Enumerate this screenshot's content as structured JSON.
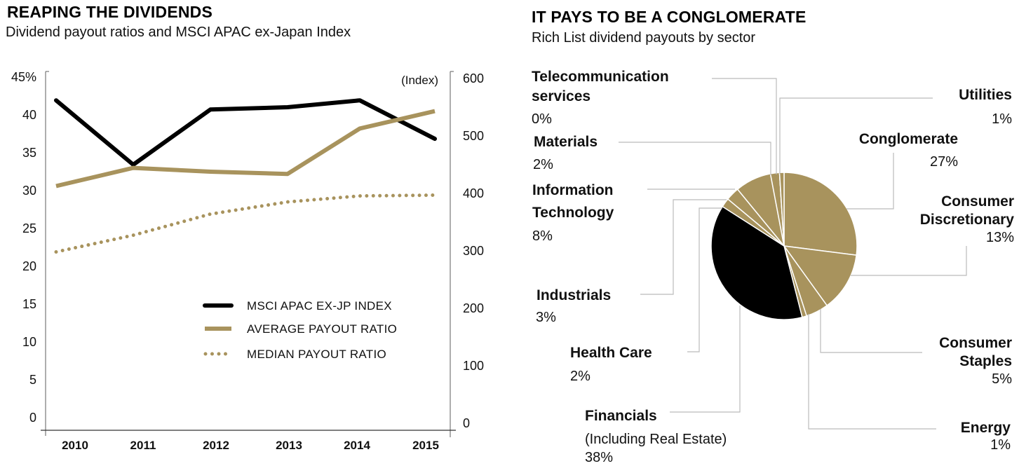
{
  "colors": {
    "gold": "#A8935D",
    "black": "#000000",
    "axis": "#777777",
    "leader": "#BBBBBB"
  },
  "left_panel": {
    "title": "REAPING THE DIVIDENDS",
    "subtitle": "Dividend payout ratios and MSCI APAC ex-Japan Index"
  },
  "right_panel": {
    "title": "IT PAYS TO BE A CONGLOMERATE",
    "subtitle": "Rich List dividend payouts by sector"
  },
  "chart_data": [
    {
      "type": "line",
      "title": "REAPING THE DIVIDENDS",
      "subtitle": "Dividend payout ratios and MSCI APAC ex-Japan Index",
      "x": [
        "2010",
        "2011",
        "2012",
        "2013",
        "2014",
        "2015"
      ],
      "y_left": {
        "label": "%",
        "ylim": [
          0,
          45
        ],
        "ticks": [
          "45%",
          "40",
          "35",
          "30",
          "25",
          "20",
          "15",
          "10",
          "5",
          "0"
        ],
        "tick_values": [
          45,
          40,
          35,
          30,
          25,
          20,
          15,
          10,
          5,
          0
        ]
      },
      "y_right": {
        "label": "(Index)",
        "ylim": [
          0,
          600
        ],
        "ticks": [
          "600",
          "500",
          "400",
          "300",
          "200",
          "100",
          "0"
        ],
        "tick_values": [
          600,
          500,
          400,
          300,
          200,
          100,
          0
        ]
      },
      "grid": false,
      "legend_placement": "bottom-right",
      "series": [
        {
          "name": "MSCI APAC EX-JP INDEX",
          "axis": "right",
          "style": "solid-black",
          "values": [
            562,
            450,
            546,
            550,
            562,
            495
          ]
        },
        {
          "name": "AVERAGE PAYOUT RATIO",
          "axis": "left",
          "style": "solid-gold",
          "values": [
            30.6,
            33.0,
            32.5,
            32.2,
            38.2,
            40.5
          ]
        },
        {
          "name": "MEDIAN PAYOUT RATIO",
          "axis": "left",
          "style": "dotted-gold",
          "values": [
            21.9,
            24.1,
            26.9,
            28.5,
            29.3,
            29.4
          ]
        }
      ]
    },
    {
      "type": "pie",
      "title": "IT PAYS TO BE A CONGLOMERATE",
      "subtitle": "Rich List dividend payouts by sector",
      "unit": "%",
      "start": "12 o'clock, clockwise",
      "slices": [
        {
          "name": "Conglomerate",
          "value": 27,
          "label": "27%",
          "color": "gold"
        },
        {
          "name": "Consumer Discretionary",
          "value": 13,
          "label": "13%",
          "color": "gold"
        },
        {
          "name": "Consumer Staples",
          "value": 5,
          "label": "5%",
          "color": "gold"
        },
        {
          "name": "Energy",
          "value": 1,
          "label": "1%",
          "color": "gold"
        },
        {
          "name": "Financials",
          "note": "(Including Real Estate)",
          "value": 38,
          "label": "38%",
          "color": "black"
        },
        {
          "name": "Health Care",
          "value": 2,
          "label": "2%",
          "color": "gold"
        },
        {
          "name": "Industrials",
          "value": 3,
          "label": "3%",
          "color": "gold"
        },
        {
          "name": "Information Technology",
          "value": 8,
          "label": "8%",
          "color": "gold"
        },
        {
          "name": "Materials",
          "value": 2,
          "label": "2%",
          "color": "gold"
        },
        {
          "name": "Telecommunication services",
          "value": 0,
          "label": "0%",
          "color": "gold"
        },
        {
          "name": "Utilities",
          "value": 1,
          "label": "1%",
          "color": "gold"
        }
      ]
    }
  ]
}
